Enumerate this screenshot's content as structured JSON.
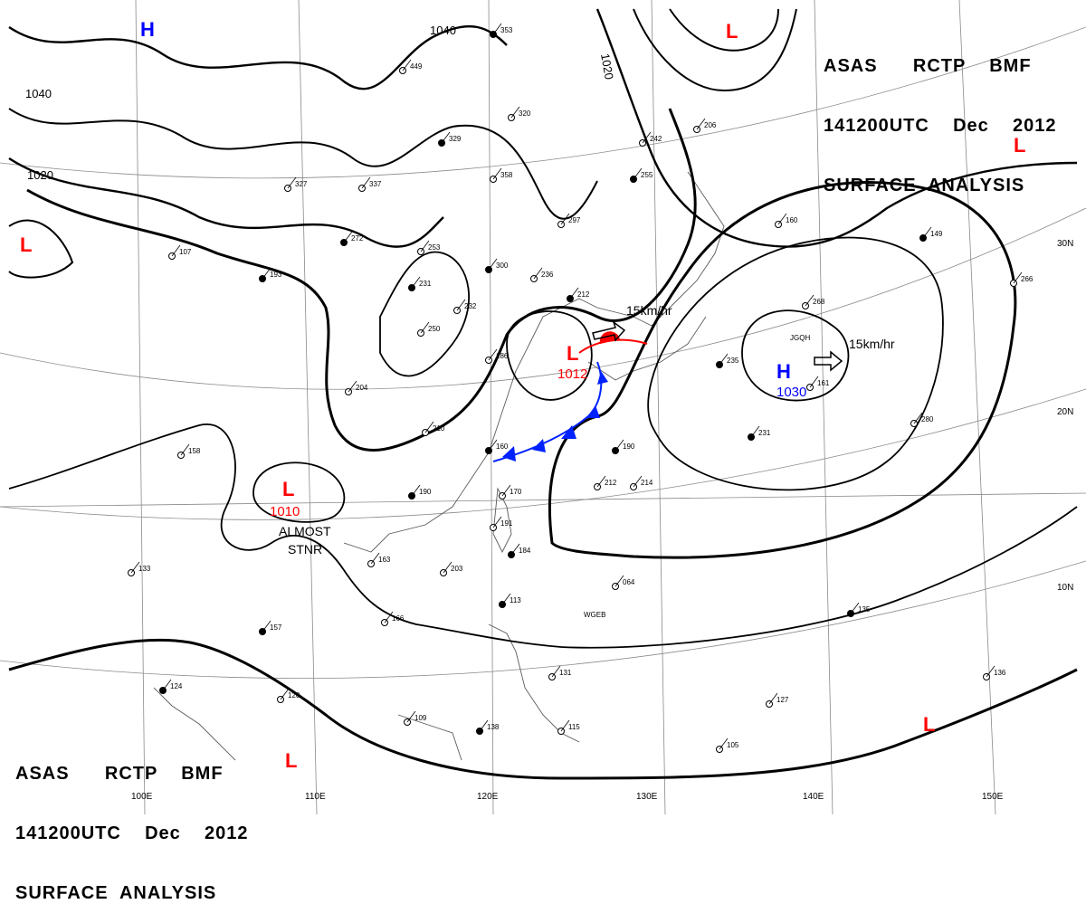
{
  "header": {
    "line1": "ASAS      RCTP    BMF",
    "line2": "141200UTC    Dec    2012",
    "line3": "SURFACE  ANALYSIS"
  },
  "isobar_labels": [
    "1040",
    "1040",
    "1020",
    "1020",
    "1012",
    "1010",
    "1030"
  ],
  "centers": {
    "H": "H",
    "L": "L"
  },
  "pressure_values": {
    "low_east_china_sea": "1012",
    "low_gulf_of_tonkin": "1010",
    "high_pacific": "1030"
  },
  "annotations": {
    "motion_1": "15km/hr",
    "motion_2": "15km/hr",
    "almost": "ALMOST",
    "stnr": "STNR"
  },
  "graticule": {
    "lon": [
      "100E",
      "110E",
      "120E",
      "130E",
      "140E",
      "150E"
    ],
    "lat": [
      "30N",
      "20N",
      "10N"
    ]
  },
  "station_ids": [
    "JGQH",
    "WGEB"
  ],
  "station_numbers": [
    "353",
    "449",
    "320",
    "329",
    "358",
    "242",
    "255",
    "297",
    "236",
    "212",
    "186",
    "232",
    "231",
    "250",
    "253",
    "300",
    "327",
    "337",
    "272",
    "206",
    "160",
    "149",
    "161",
    "163",
    "190",
    "170",
    "191",
    "184",
    "203",
    "166",
    "157",
    "120",
    "109",
    "138",
    "115",
    "105",
    "113",
    "131",
    "127",
    "135",
    "136",
    "064",
    "190",
    "212",
    "214",
    "235",
    "268",
    "280",
    "231",
    "266",
    "107",
    "193",
    "204",
    "210",
    "160",
    "158",
    "133",
    "124"
  ],
  "colors": {
    "isobar": "#000000",
    "grid": "#8a8a8a",
    "coast": "#5a5a5a",
    "low": "#ff0000",
    "high": "#0000ff",
    "cold_front": "#0022ff",
    "warm_front": "#ff0000"
  }
}
